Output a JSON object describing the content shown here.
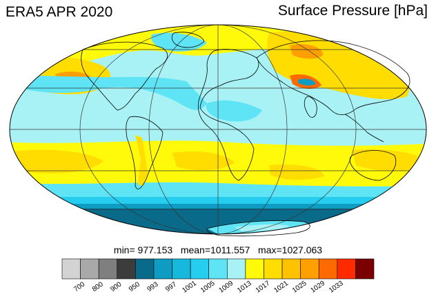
{
  "header": {
    "left_title": "ERA5 APR 2020",
    "right_title": "Surface Pressure [hPa]"
  },
  "stats": {
    "min_label": "min=",
    "min": "977.153",
    "mean_label": "mean=",
    "mean": "1011.557",
    "max_label": "max=",
    "max": "1027.063"
  },
  "colorbar": {
    "colors": [
      "#d3d3d3",
      "#a9a9a9",
      "#7f7f7f",
      "#3c3c3c",
      "#0a6a8a",
      "#0e9cc2",
      "#16b8dc",
      "#27cdee",
      "#5fe4f5",
      "#a8f2f6",
      "#fff90a",
      "#ffdd00",
      "#ffc200",
      "#ffa000",
      "#ff6a00",
      "#ff2a00",
      "#7a0000"
    ],
    "tick_labels": [
      "700",
      "800",
      "900",
      "950",
      "993",
      "997",
      "1001",
      "1005",
      "1009",
      "1013",
      "1017",
      "1021",
      "1025",
      "1029",
      "1033"
    ]
  },
  "map": {
    "projection": "Mollweide",
    "ocean_base_color": "#a8f2f6",
    "coastline_color": "#000000"
  }
}
